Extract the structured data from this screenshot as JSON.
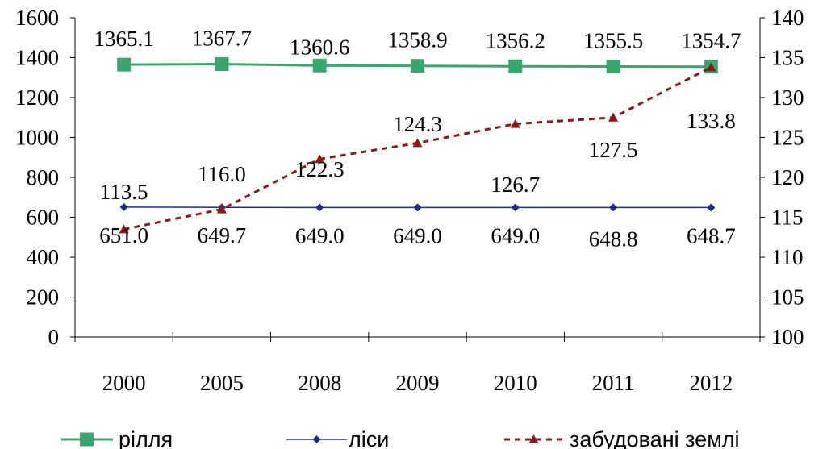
{
  "chart_data": {
    "type": "line",
    "categories": [
      "2000",
      "2005",
      "2008",
      "2009",
      "2010",
      "2011",
      "2012"
    ],
    "y_left": {
      "min": 0,
      "max": 1600,
      "step": 200,
      "ticks": [
        "0",
        "200",
        "400",
        "600",
        "800",
        "1000",
        "1200",
        "1400",
        "1600"
      ]
    },
    "y_right": {
      "min": 100,
      "max": 140,
      "step": 5,
      "ticks": [
        "100",
        "105",
        "110",
        "115",
        "120",
        "125",
        "130",
        "135",
        "140"
      ]
    },
    "series": [
      {
        "name": "рілля",
        "axis": "left",
        "values": [
          1365.1,
          1367.7,
          1360.6,
          1358.9,
          1356.2,
          1355.5,
          1354.7
        ],
        "labels": [
          "1365.1",
          "1367.7",
          "1360.6",
          "1358.9",
          "1356.2",
          "1355.5",
          "1354.7"
        ],
        "color": "#3aa66e",
        "marker": "square",
        "dash": "solid"
      },
      {
        "name": "ліси",
        "axis": "left",
        "values": [
          651.0,
          649.7,
          649.0,
          649.0,
          649.0,
          648.8,
          648.7
        ],
        "labels": [
          "651.0",
          "649.7",
          "649.0",
          "649.0",
          "649.0",
          "648.8",
          "648.7"
        ],
        "color": "#1f2a8c",
        "marker": "diamond",
        "dash": "solid"
      },
      {
        "name": "забудовані землі",
        "axis": "right",
        "values": [
          113.5,
          116.0,
          122.3,
          124.3,
          126.7,
          127.5,
          133.8
        ],
        "labels": [
          "113.5",
          "116.0",
          "122.3",
          "124.3",
          "126.7",
          "127.5",
          "133.8"
        ],
        "color": "#8b1a1a",
        "marker": "triangle",
        "dash": "dashed"
      }
    ],
    "legend_position": "bottom",
    "grid": false
  }
}
